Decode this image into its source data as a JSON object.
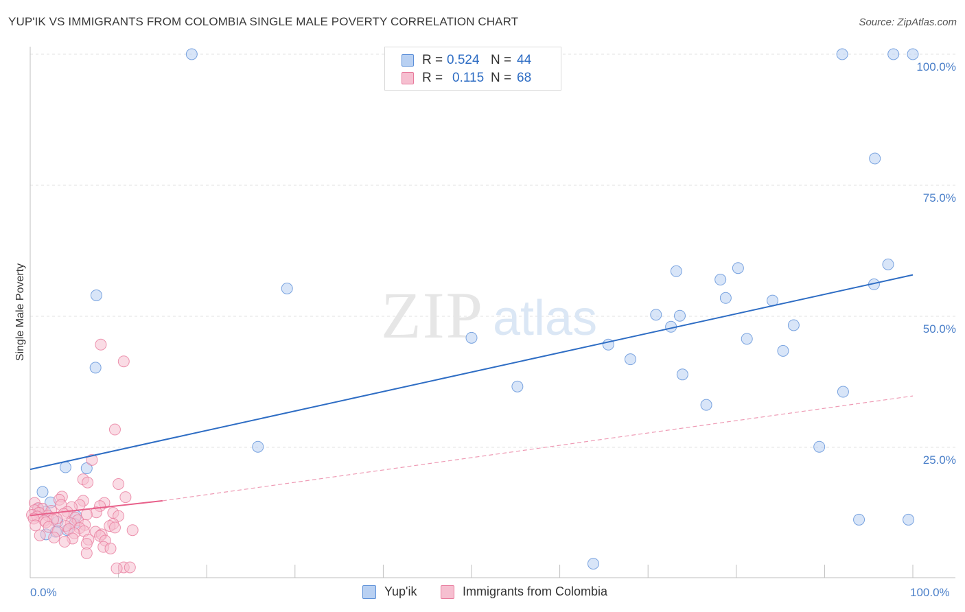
{
  "title": "YUP'IK VS IMMIGRANTS FROM COLOMBIA SINGLE MALE POVERTY CORRELATION CHART",
  "source": "Source: ZipAtlas.com",
  "watermark": {
    "zip": "ZIP",
    "atlas": "atlas"
  },
  "legend_top": [
    {
      "r_label": "R =",
      "r_value": "0.524",
      "n_label": "N =",
      "n_value": "44"
    },
    {
      "r_label": "R =",
      "r_value": "0.115",
      "n_label": "N =",
      "n_value": "68"
    }
  ],
  "legend_bottom": [
    "Yup'ik",
    "Immigrants from Colombia"
  ],
  "chart_data": {
    "type": "scatter",
    "ylabel": "Single Male Poverty",
    "xlabel": "",
    "xlim": [
      0,
      100
    ],
    "ylim": [
      0,
      100
    ],
    "x_tick_labels": [
      "0.0%",
      "100.0%"
    ],
    "y_tick_labels": [
      "25.0%",
      "50.0%",
      "75.0%",
      "100.0%"
    ],
    "y_ticks": [
      25,
      50,
      75,
      100
    ],
    "grid": "horizontal dashed",
    "series": [
      {
        "name": "Yup'ik",
        "color": "#5b8fd8",
        "fill": "#b8d0f2",
        "r": 0.524,
        "n": 44,
        "trend": {
          "x": [
            0,
            100
          ],
          "y": [
            20.8,
            57.9
          ],
          "style": "solid"
        },
        "points": [
          [
            18.3,
            100
          ],
          [
            92,
            100
          ],
          [
            97.8,
            100
          ],
          [
            100,
            100
          ],
          [
            95.7,
            80.1
          ],
          [
            97.2,
            59.9
          ],
          [
            95.6,
            56.1
          ],
          [
            73.2,
            58.6
          ],
          [
            80.2,
            59.2
          ],
          [
            78.2,
            57.0
          ],
          [
            7.5,
            54.0
          ],
          [
            29.1,
            55.3
          ],
          [
            78.8,
            53.5
          ],
          [
            84.1,
            53.0
          ],
          [
            70.9,
            50.3
          ],
          [
            73.6,
            50.1
          ],
          [
            86.5,
            48.3
          ],
          [
            72.6,
            48.0
          ],
          [
            50.0,
            45.9
          ],
          [
            81.2,
            45.7
          ],
          [
            65.5,
            44.6
          ],
          [
            85.3,
            43.4
          ],
          [
            68.0,
            41.8
          ],
          [
            7.4,
            40.2
          ],
          [
            73.9,
            38.9
          ],
          [
            55.2,
            36.6
          ],
          [
            92.1,
            35.6
          ],
          [
            76.6,
            33.1
          ],
          [
            25.8,
            25.1
          ],
          [
            89.4,
            25.1
          ],
          [
            4.0,
            21.2
          ],
          [
            6.4,
            21.0
          ],
          [
            1.4,
            16.5
          ],
          [
            2.3,
            14.5
          ],
          [
            0.9,
            13.3
          ],
          [
            1.7,
            12.7
          ],
          [
            5.2,
            11.9
          ],
          [
            3.1,
            10.8
          ],
          [
            5.0,
            10.4
          ],
          [
            4.2,
            9.2
          ],
          [
            2.9,
            8.9
          ],
          [
            1.8,
            8.4
          ],
          [
            93.9,
            11.2
          ],
          [
            99.5,
            11.2
          ],
          [
            63.8,
            2.8
          ]
        ]
      },
      {
        "name": "Immigrants from Colombia",
        "color": "#e87a9c",
        "fill": "#f6bfd0",
        "r": 0.115,
        "n": 68,
        "trend": {
          "x": [
            0,
            15
          ],
          "y": [
            12.0,
            14.8
          ],
          "style": "solid"
        },
        "trend_extension": {
          "x": [
            15,
            100
          ],
          "y": [
            14.8,
            34.8
          ],
          "style": "dashed"
        },
        "points": [
          [
            8.0,
            44.6
          ],
          [
            10.6,
            41.4
          ],
          [
            9.6,
            28.4
          ],
          [
            7.0,
            22.6
          ],
          [
            6.0,
            18.9
          ],
          [
            6.5,
            18.3
          ],
          [
            10.0,
            18.0
          ],
          [
            3.6,
            15.6
          ],
          [
            10.8,
            15.5
          ],
          [
            3.3,
            15.0
          ],
          [
            6.0,
            14.8
          ],
          [
            8.4,
            14.4
          ],
          [
            0.5,
            14.4
          ],
          [
            3.5,
            14.0
          ],
          [
            5.6,
            14.0
          ],
          [
            7.9,
            13.8
          ],
          [
            4.7,
            13.6
          ],
          [
            0.9,
            13.4
          ],
          [
            1.4,
            13.3
          ],
          [
            0.5,
            13.0
          ],
          [
            2.4,
            12.9
          ],
          [
            4.2,
            12.7
          ],
          [
            7.5,
            12.6
          ],
          [
            9.4,
            12.5
          ],
          [
            1.0,
            12.5
          ],
          [
            3.8,
            12.3
          ],
          [
            6.4,
            12.2
          ],
          [
            0.2,
            12.1
          ],
          [
            2.0,
            12.0
          ],
          [
            10.0,
            11.9
          ],
          [
            0.8,
            11.8
          ],
          [
            5.1,
            11.6
          ],
          [
            3.0,
            11.4
          ],
          [
            0.4,
            11.4
          ],
          [
            2.6,
            11.2
          ],
          [
            5.4,
            11.1
          ],
          [
            1.6,
            11.0
          ],
          [
            1.8,
            10.7
          ],
          [
            4.6,
            10.5
          ],
          [
            9.4,
            10.4
          ],
          [
            6.2,
            10.2
          ],
          [
            0.6,
            10.1
          ],
          [
            4.0,
            10.0
          ],
          [
            9.0,
            10.0
          ],
          [
            2.1,
            9.8
          ],
          [
            9.6,
            9.7
          ],
          [
            5.6,
            9.6
          ],
          [
            4.4,
            9.4
          ],
          [
            11.6,
            9.2
          ],
          [
            3.1,
            9.0
          ],
          [
            6.1,
            9.0
          ],
          [
            7.4,
            8.9
          ],
          [
            5.0,
            8.6
          ],
          [
            8.1,
            8.4
          ],
          [
            1.1,
            8.2
          ],
          [
            7.9,
            8.1
          ],
          [
            2.7,
            7.8
          ],
          [
            4.8,
            7.6
          ],
          [
            6.6,
            7.4
          ],
          [
            8.5,
            7.2
          ],
          [
            3.9,
            7.0
          ],
          [
            6.4,
            6.6
          ],
          [
            8.3,
            6.0
          ],
          [
            9.1,
            5.7
          ],
          [
            6.4,
            4.8
          ],
          [
            10.6,
            2.1
          ],
          [
            11.3,
            2.1
          ],
          [
            9.8,
            1.9
          ]
        ]
      }
    ]
  }
}
